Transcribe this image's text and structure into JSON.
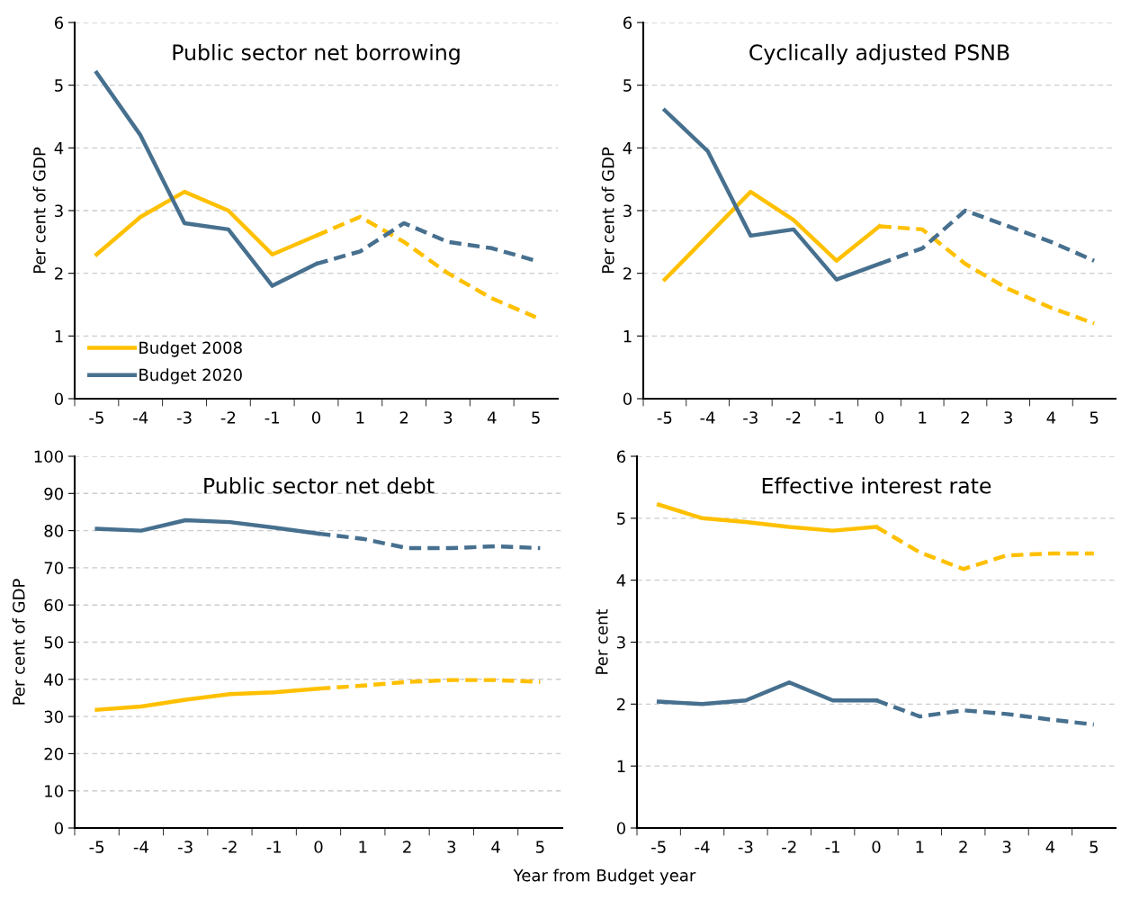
{
  "chart_data": [
    {
      "type": "line",
      "title": "Public sector net borrowing",
      "ylabel": "Per cent of GDP",
      "categories": [
        "-5",
        "-4",
        "-3",
        "-2",
        "-1",
        "0",
        "1",
        "2",
        "3",
        "4",
        "5"
      ],
      "ylim": [
        0,
        6
      ],
      "yticks": [
        0,
        1,
        2,
        3,
        4,
        5,
        6
      ],
      "grid": "y",
      "legend": "bottom left",
      "marker": "none",
      "series": [
        {
          "name": "Budget 2008",
          "color": "#ffc000",
          "line_style": "solid",
          "values": [
            2.3,
            2.9,
            3.3,
            3.0,
            2.3,
            2.6,
            null,
            null,
            null,
            null,
            null
          ]
        },
        {
          "name": "Budget 2020",
          "color": "#47708f",
          "line_style": "solid",
          "values": [
            5.2,
            4.2,
            2.8,
            2.7,
            1.8,
            2.15,
            null,
            null,
            null,
            null,
            null
          ]
        },
        {
          "color": "#ffc000",
          "line_style": "dashed",
          "values": [
            null,
            null,
            null,
            null,
            null,
            2.6,
            2.9,
            2.5,
            2.0,
            1.6,
            1.3
          ]
        },
        {
          "color": "#47708f",
          "line_style": "dashed",
          "values": [
            null,
            null,
            null,
            null,
            null,
            2.15,
            2.35,
            2.8,
            2.5,
            2.4,
            2.2
          ]
        }
      ]
    },
    {
      "type": "line",
      "title": "Cyclically adjusted PSNB",
      "ylabel": "Per cent of GDP",
      "categories": [
        "-5",
        "-4",
        "-3",
        "-2",
        "-1",
        "0",
        "1",
        "2",
        "3",
        "4",
        "5"
      ],
      "ylim": [
        0,
        6
      ],
      "yticks": [
        0,
        1,
        2,
        3,
        4,
        5,
        6
      ],
      "grid": "y",
      "marker": "none",
      "series": [
        {
          "color": "#ffc000",
          "line_style": "solid",
          "values": [
            1.9,
            2.6,
            3.3,
            2.85,
            2.2,
            2.75,
            null,
            null,
            null,
            null,
            null
          ]
        },
        {
          "color": "#47708f",
          "line_style": "solid",
          "values": [
            4.6,
            3.95,
            2.6,
            2.7,
            1.9,
            2.15,
            null,
            null,
            null,
            null,
            null
          ]
        },
        {
          "color": "#ffc000",
          "line_style": "dashed",
          "values": [
            null,
            null,
            null,
            null,
            null,
            2.75,
            2.7,
            2.15,
            1.75,
            1.45,
            1.2
          ]
        },
        {
          "color": "#47708f",
          "line_style": "dashed",
          "values": [
            null,
            null,
            null,
            null,
            null,
            2.15,
            2.4,
            3.0,
            2.75,
            2.5,
            2.2
          ]
        }
      ]
    },
    {
      "type": "line",
      "title": "Public sector net debt",
      "ylabel": "Per cent of GDP",
      "xlabel": "Year from Budget year",
      "categories": [
        "-5",
        "-4",
        "-3",
        "-2",
        "-1",
        "0",
        "1",
        "2",
        "3",
        "4",
        "5"
      ],
      "ylim": [
        0,
        100
      ],
      "yticks": [
        0,
        10,
        20,
        30,
        40,
        50,
        60,
        70,
        80,
        90,
        100
      ],
      "grid": "y",
      "marker": "none",
      "series": [
        {
          "color": "#ffc000",
          "line_style": "solid",
          "values": [
            31.8,
            32.7,
            34.5,
            36,
            36.5,
            37.5,
            null,
            null,
            null,
            null,
            null
          ]
        },
        {
          "color": "#47708f",
          "line_style": "solid",
          "values": [
            80.5,
            80,
            82.8,
            82.3,
            80.8,
            79.2,
            null,
            null,
            null,
            null,
            null
          ]
        },
        {
          "color": "#ffc000",
          "line_style": "dashed",
          "values": [
            null,
            null,
            null,
            null,
            null,
            37.5,
            38.3,
            39.3,
            39.8,
            39.8,
            39.3
          ]
        },
        {
          "color": "#47708f",
          "line_style": "dashed",
          "values": [
            null,
            null,
            null,
            null,
            null,
            79.2,
            77.8,
            75.3,
            75.3,
            75.8,
            75.3
          ]
        }
      ]
    },
    {
      "type": "line",
      "title": "Effective interest rate",
      "ylabel": "Per cent",
      "categories": [
        "-5",
        "-4",
        "-3",
        "-2",
        "-1",
        "0",
        "1",
        "2",
        "3",
        "4",
        "5"
      ],
      "ylim": [
        0,
        6
      ],
      "yticks": [
        0,
        1,
        2,
        3,
        4,
        5,
        6
      ],
      "grid": "y",
      "marker": "none",
      "series": [
        {
          "color": "#ffc000",
          "line_style": "solid",
          "values": [
            5.22,
            5.0,
            4.94,
            4.86,
            4.8,
            4.86,
            null,
            null,
            null,
            null,
            null
          ]
        },
        {
          "color": "#47708f",
          "line_style": "solid",
          "values": [
            2.04,
            2.0,
            2.06,
            2.35,
            2.06,
            2.06,
            null,
            null,
            null,
            null,
            null
          ]
        },
        {
          "color": "#ffc000",
          "line_style": "dashed",
          "values": [
            null,
            null,
            null,
            null,
            null,
            4.86,
            4.45,
            4.18,
            4.4,
            4.43,
            4.43
          ]
        },
        {
          "color": "#47708f",
          "line_style": "dashed",
          "values": [
            null,
            null,
            null,
            null,
            null,
            2.06,
            1.8,
            1.9,
            1.84,
            1.75,
            1.67
          ]
        }
      ]
    }
  ]
}
